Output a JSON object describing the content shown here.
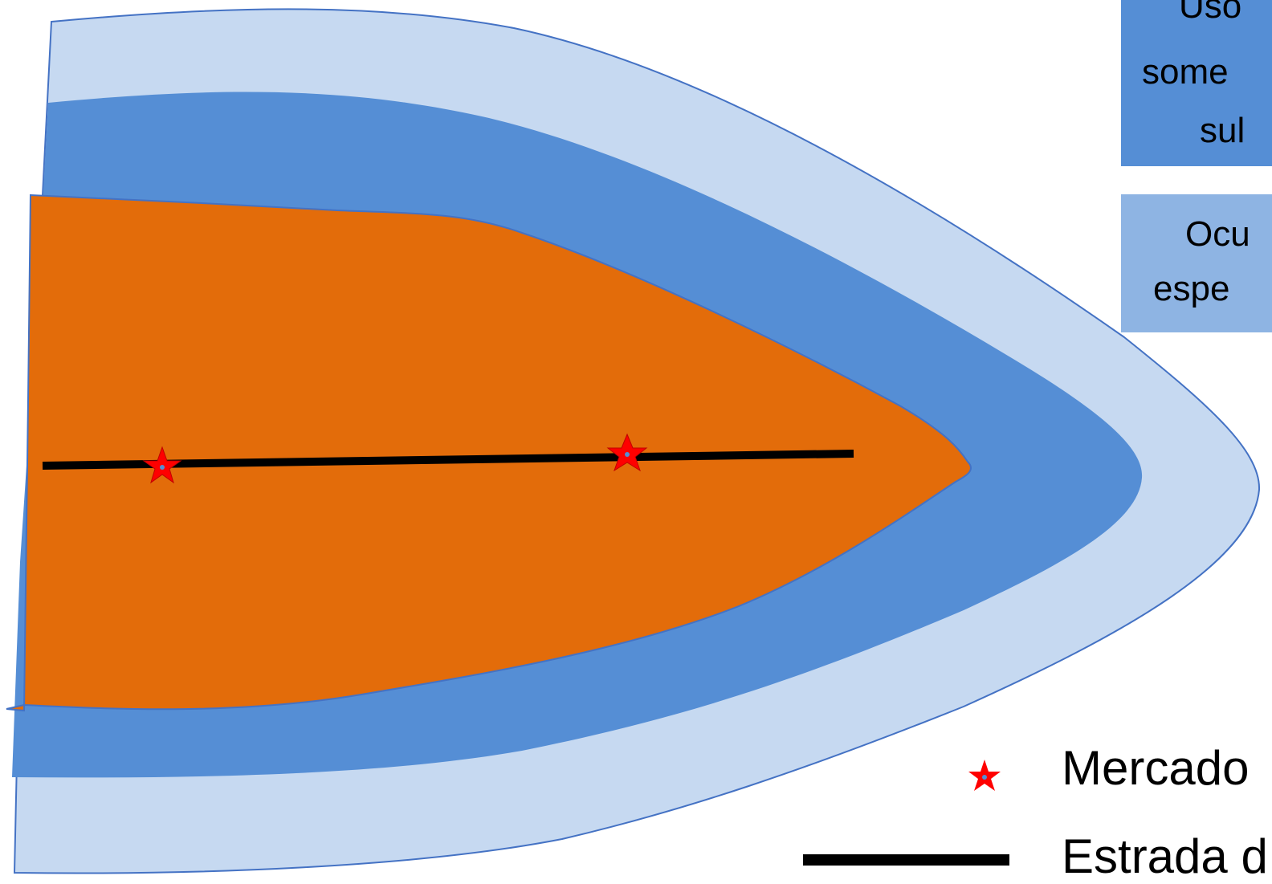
{
  "zones": [
    {
      "name": "outer-zone",
      "color": "#c6d9f1"
    },
    {
      "name": "middle-zone",
      "color": "#558ed5"
    },
    {
      "name": "inner-zone",
      "color": "#e36c0a"
    }
  ],
  "legend_boxes": {
    "top": {
      "lines": [
        "Uso",
        "some",
        "sul"
      ],
      "color": "#558ed5"
    },
    "middle": {
      "lines": [
        "Ocu",
        "espe"
      ],
      "color": "#8eb4e3"
    }
  },
  "legend": {
    "market_label": "Mercado",
    "road_label": "Estrada d"
  },
  "colors": {
    "star": "#ff0000",
    "road": "#000000",
    "outline": "#4472c4"
  }
}
